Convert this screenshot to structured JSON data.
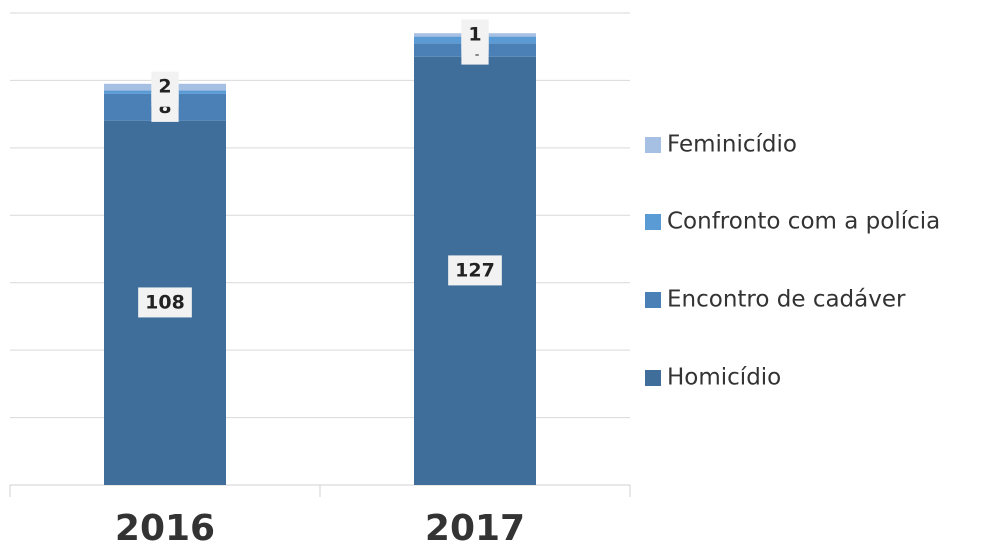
{
  "chart_data": {
    "type": "stacked_bar",
    "categories": [
      "2016",
      "2017"
    ],
    "series": [
      {
        "name": "Homicídio",
        "color": "#3f6e9a",
        "values": [
          108,
          127
        ]
      },
      {
        "name": "Encontro de cadáver",
        "color": "#4a80b5",
        "values": [
          8,
          4
        ]
      },
      {
        "name": "Confronto com a polícia",
        "color": "#5b9bd5",
        "values": [
          1,
          2
        ]
      },
      {
        "name": "Feminicídio",
        "color": "#a6c0e4",
        "values": [
          2,
          1
        ]
      }
    ],
    "ylim": [
      0,
      140
    ],
    "yticks": [
      0,
      20,
      40,
      60,
      80,
      100,
      120,
      140
    ],
    "grid": true,
    "legend": "right"
  }
}
